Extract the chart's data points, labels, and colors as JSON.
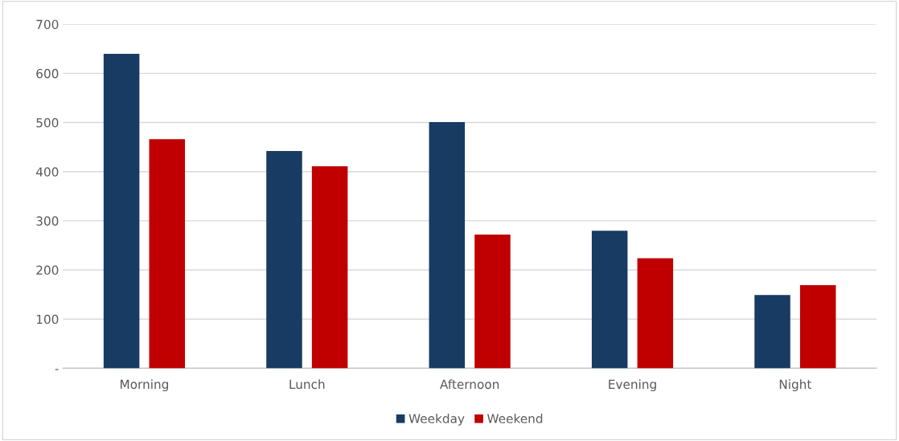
{
  "chart_data": {
    "type": "bar",
    "categories": [
      "Morning",
      "Lunch",
      "Afternoon",
      "Evening",
      "Night"
    ],
    "series": [
      {
        "name": "Weekday",
        "color": "#173b63",
        "values": [
          640,
          442,
          501,
          280,
          149
        ]
      },
      {
        "name": "Weekend",
        "color": "#c00000",
        "values": [
          466,
          411,
          272,
          224,
          169
        ]
      }
    ],
    "ylim": [
      0,
      700
    ],
    "yticks": [
      {
        "value": 0,
        "label": "-"
      },
      100,
      200,
      300,
      400,
      500,
      600,
      700
    ],
    "grid": "y",
    "legend": "bottom"
  }
}
